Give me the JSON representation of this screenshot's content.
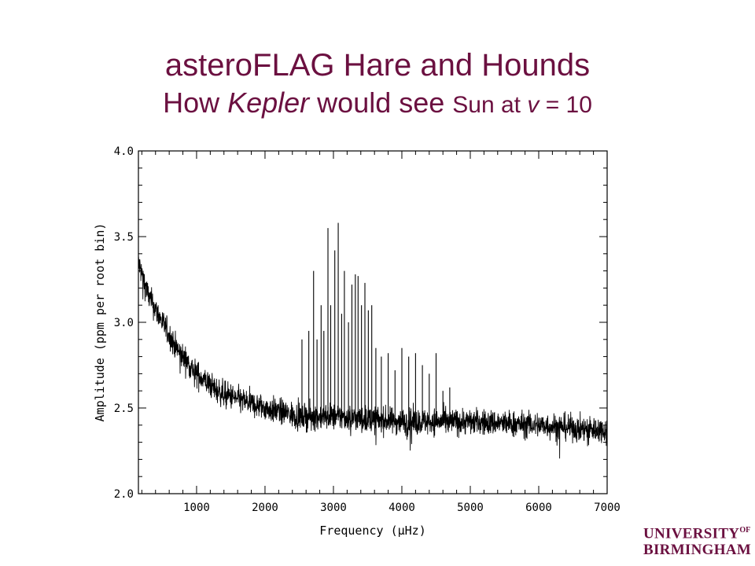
{
  "slide": {
    "title_line1": "asteroFLAG Hare and Hounds",
    "title_line2_a": "How ",
    "title_line2_b": "Kepler",
    "title_line2_c": " would see ",
    "title_line2_d": "Sun at ",
    "title_line2_e": "v",
    "title_line2_f": " = 10"
  },
  "logo": {
    "line1": "UNIVERSITY",
    "of": "OF",
    "line2": "BIRMINGHAM"
  },
  "chart_data": {
    "type": "line",
    "xlabel": "Frequency (μHz)",
    "ylabel": "Amplitude (ppm per root bin)",
    "xlim": [
      150,
      7000
    ],
    "ylim": [
      2.0,
      4.0
    ],
    "x_ticks": [
      1000,
      2000,
      3000,
      4000,
      5000,
      6000,
      7000
    ],
    "y_ticks": [
      2.0,
      2.5,
      3.0,
      3.5,
      4.0
    ],
    "x_tick_labels": [
      "1000",
      "2000",
      "3000",
      "4000",
      "5000",
      "6000",
      "7000"
    ],
    "y_tick_labels": [
      "2.0",
      "2.5",
      "3.0",
      "3.5",
      "4.0"
    ],
    "grid": false,
    "background": {
      "description_points_x": [
        150,
        300,
        500,
        700,
        1000,
        1300,
        1600,
        2000,
        2500,
        3000,
        4000,
        5000,
        6000,
        7000
      ],
      "description_points_y": [
        3.35,
        3.15,
        3.0,
        2.85,
        2.7,
        2.6,
        2.55,
        2.5,
        2.45,
        2.45,
        2.42,
        2.42,
        2.4,
        2.37
      ]
    },
    "peaks": {
      "x": [
        2540,
        2640,
        2710,
        2760,
        2820,
        2860,
        2920,
        2960,
        3020,
        3070,
        3120,
        3160,
        3220,
        3270,
        3320,
        3360,
        3410,
        3460,
        3510,
        3560,
        3620,
        3700,
        3800,
        3900,
        4000,
        4100,
        4200,
        4300,
        4400,
        4500,
        4600,
        4700
      ],
      "y": [
        2.9,
        2.95,
        3.3,
        2.9,
        3.1,
        2.95,
        3.55,
        3.1,
        3.42,
        3.58,
        3.05,
        3.3,
        3.0,
        3.22,
        3.28,
        3.27,
        3.1,
        3.23,
        3.07,
        3.1,
        2.85,
        2.8,
        2.82,
        2.72,
        2.85,
        2.8,
        2.82,
        2.75,
        2.7,
        2.82,
        2.6,
        2.62
      ]
    },
    "color": "#000000"
  }
}
